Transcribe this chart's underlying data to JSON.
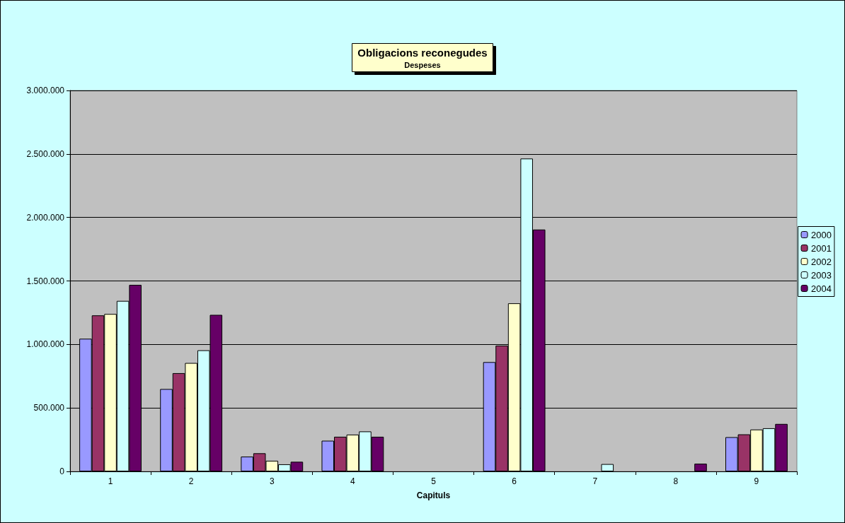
{
  "chart_data": {
    "type": "bar",
    "title": "Obligacions reconegudes",
    "subtitle": "Despeses",
    "xlabel": "Capituls",
    "categories": [
      "1",
      "2",
      "3",
      "4",
      "5",
      "6",
      "7",
      "8",
      "9"
    ],
    "series": [
      {
        "name": "2000",
        "color": "#9999ff",
        "values": [
          1045000,
          649000,
          117000,
          242000,
          0,
          861000,
          0,
          0,
          270000
        ]
      },
      {
        "name": "2001",
        "color": "#993366",
        "values": [
          1229000,
          774000,
          143000,
          273000,
          0,
          991000,
          0,
          0,
          292000
        ]
      },
      {
        "name": "2002",
        "color": "#ffffcc",
        "values": [
          1240000,
          854000,
          84000,
          290000,
          0,
          1324000,
          0,
          0,
          330000
        ]
      },
      {
        "name": "2003",
        "color": "#ccffff",
        "values": [
          1343000,
          954000,
          56000,
          315000,
          0,
          2464000,
          58000,
          0,
          340000
        ]
      },
      {
        "name": "2004",
        "color": "#660066",
        "values": [
          1469000,
          1233000,
          76000,
          273000,
          0,
          1905000,
          0,
          61000,
          374000
        ]
      }
    ],
    "ylim": [
      0,
      3000000
    ],
    "yticks": [
      {
        "value": 0,
        "label": "0"
      },
      {
        "value": 500000,
        "label": "500.000"
      },
      {
        "value": 1000000,
        "label": "1.000.000"
      },
      {
        "value": 1500000,
        "label": "1.500.000"
      },
      {
        "value": 2000000,
        "label": "2.000.000"
      },
      {
        "value": 2500000,
        "label": "2.500.000"
      },
      {
        "value": 3000000,
        "label": "3.000.000"
      }
    ],
    "grid": "y",
    "legend": "right"
  }
}
